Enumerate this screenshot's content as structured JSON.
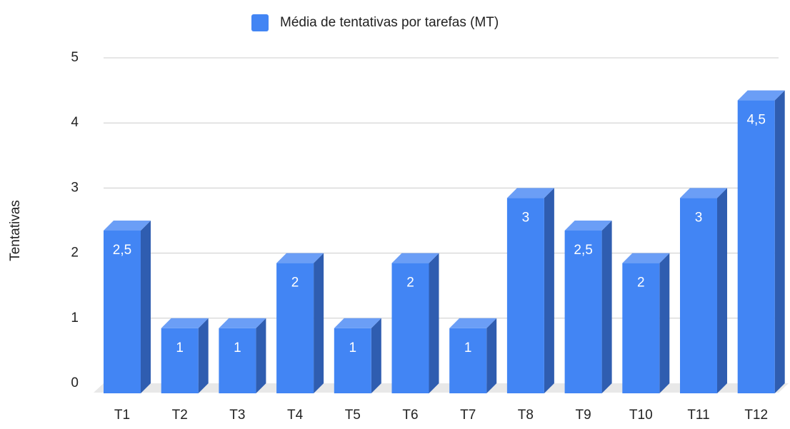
{
  "chart_data": {
    "type": "bar3d",
    "legend_label": "Média de tentativas por tarefas (MT)",
    "y_axis_label": "Tentativas",
    "categories": [
      "T1",
      "T2",
      "T3",
      "T4",
      "T5",
      "T6",
      "T7",
      "T8",
      "T9",
      "T10",
      "T11",
      "T12"
    ],
    "series": [
      {
        "name": "Média de tentativas por tarefas (MT)",
        "color": "#4285f4",
        "values": [
          2.5,
          1,
          1,
          2,
          1,
          2,
          1,
          3,
          2.5,
          2,
          3,
          4.5
        ],
        "value_labels": [
          "2,5",
          "1",
          "1",
          "2",
          "1",
          "2",
          "1",
          "3",
          "2,5",
          "2",
          "3",
          "4,5"
        ]
      }
    ],
    "ylim": [
      0,
      5
    ],
    "yticks": [
      0,
      1,
      2,
      3,
      4,
      5
    ],
    "grid": true,
    "legend": "top"
  }
}
